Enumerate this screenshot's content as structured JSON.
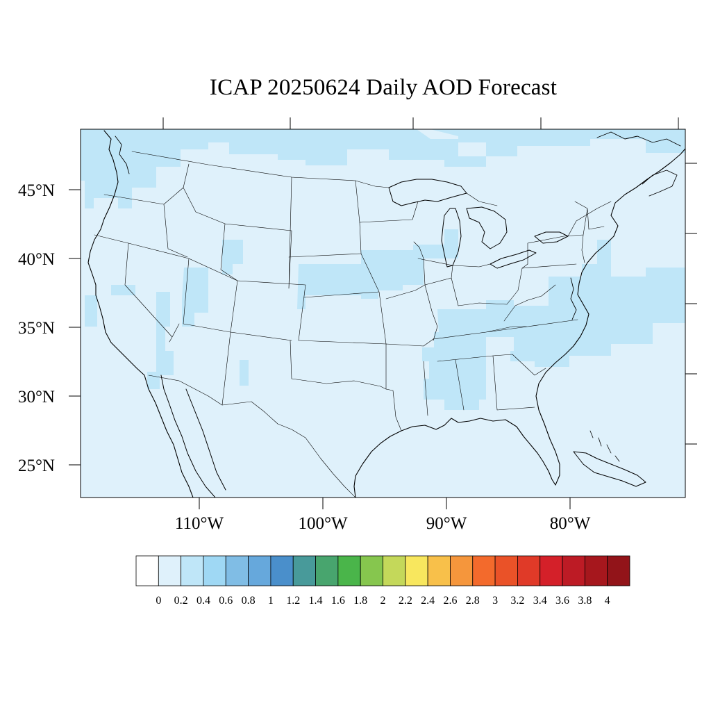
{
  "title": "ICAP 20250624 Daily AOD Forecast",
  "map": {
    "lat_labels": [
      "45°N",
      "40°N",
      "35°N",
      "30°N",
      "25°N"
    ],
    "lon_labels": [
      "110°W",
      "100°W",
      "90°W",
      "80°W"
    ],
    "background_aod_color": "#dff1fb",
    "elevated_aod_color": "#bfe6f8"
  },
  "colorbar": {
    "labels": [
      "0",
      "0.2",
      "0.4",
      "0.6",
      "0.8",
      "1",
      "1.2",
      "1.4",
      "1.6",
      "1.8",
      "2",
      "2.2",
      "2.4",
      "2.6",
      "2.8",
      "3",
      "3.2",
      "3.4",
      "3.6",
      "3.8",
      "4"
    ],
    "colors": [
      "#ffffff",
      "#dff1fb",
      "#bfe6f8",
      "#9fd8f4",
      "#80bde5",
      "#66a8dc",
      "#4a8fcb",
      "#489a9a",
      "#48a56e",
      "#4ab54a",
      "#86c64e",
      "#c4d85a",
      "#f8e75e",
      "#f8c04a",
      "#f5963c",
      "#f36a2c",
      "#ea5228",
      "#e03a28",
      "#d42029",
      "#bd1b25",
      "#a6171d",
      "#921419"
    ]
  }
}
